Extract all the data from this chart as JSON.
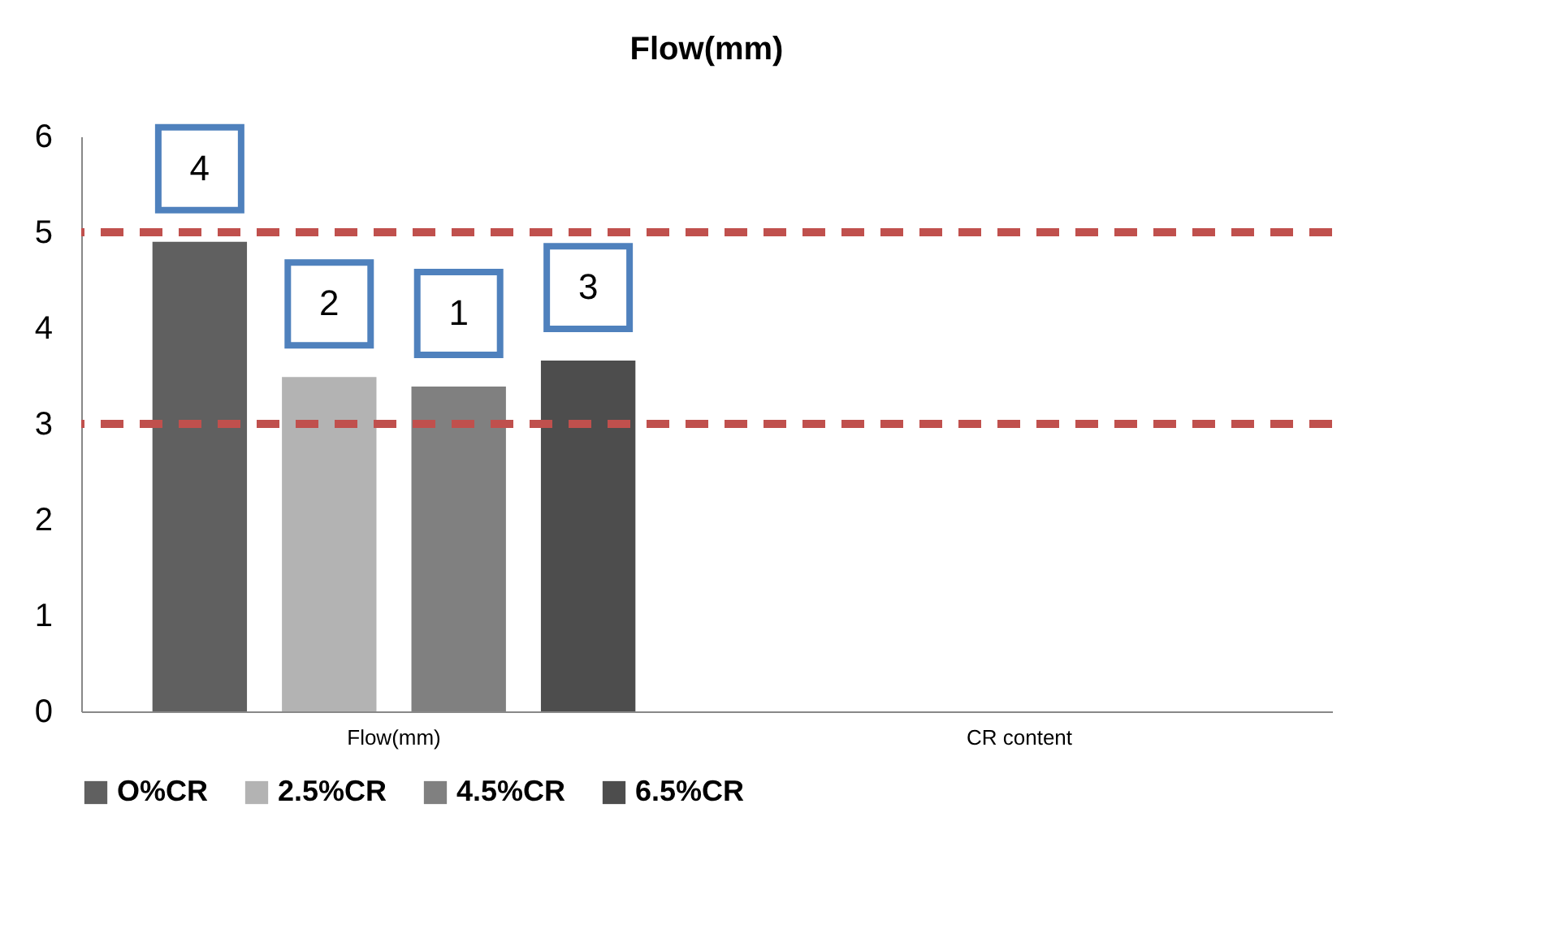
{
  "chart_data": {
    "type": "bar",
    "title": "Flow(mm)",
    "categories": [
      "Flow(mm)",
      "CR content"
    ],
    "series": [
      {
        "name": "O%CR",
        "color": "#606060",
        "values": [
          4.9,
          null
        ]
      },
      {
        "name": "2.5%CR",
        "color": "#b3b3b3",
        "values": [
          3.49,
          null
        ]
      },
      {
        "name": "4.5%CR",
        "color": "#808080",
        "values": [
          3.39,
          null
        ]
      },
      {
        "name": "6.5%CR",
        "color": "#4d4d4d",
        "values": [
          3.66,
          null
        ]
      }
    ],
    "ylim": [
      0,
      6
    ],
    "yticks": [
      0,
      1,
      2,
      3,
      4,
      5,
      6
    ],
    "grid": false,
    "legend": "bottom",
    "ref_lines": [
      {
        "axis": "y",
        "value": 5,
        "label": null,
        "color": "#c0504d",
        "line_style": "dashed"
      },
      {
        "axis": "y",
        "value": 3,
        "label": null,
        "color": "#c0504d",
        "line_style": "dashed"
      }
    ],
    "annotations": [
      "4",
      "2",
      "1",
      "3"
    ]
  }
}
